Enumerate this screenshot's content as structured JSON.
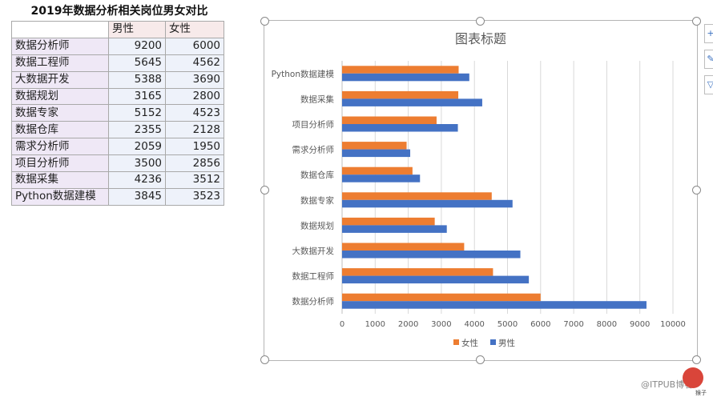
{
  "table": {
    "title": "2019年数据分析相关岗位男女对比",
    "headers": [
      "",
      "男性",
      "女性"
    ],
    "rows": [
      [
        "数据分析师",
        "9200",
        "6000"
      ],
      [
        "数据工程师",
        "5645",
        "4562"
      ],
      [
        "大数据开发",
        "5388",
        "3690"
      ],
      [
        "数据规划",
        "3165",
        "2800"
      ],
      [
        "数据专家",
        "5152",
        "4523"
      ],
      [
        "数据仓库",
        "2355",
        "2128"
      ],
      [
        "需求分析师",
        "2059",
        "1950"
      ],
      [
        "项目分析师",
        "3500",
        "2856"
      ],
      [
        "数据采集",
        "4236",
        "3512"
      ],
      [
        "Python数据建模",
        "3845",
        "3523"
      ]
    ]
  },
  "colors": {
    "male": "#4472c4",
    "female": "#ed7d31",
    "grid": "#d9d9d9",
    "text": "#595959"
  },
  "chart_data": {
    "type": "bar",
    "orientation": "horizontal",
    "title": "图表标题",
    "categories": [
      "数据分析师",
      "数据工程师",
      "大数据开发",
      "数据规划",
      "数据专家",
      "数据仓库",
      "需求分析师",
      "项目分析师",
      "数据采集",
      "Python数据建模"
    ],
    "series": [
      {
        "name": "男性",
        "values": [
          9200,
          5645,
          5388,
          3165,
          5152,
          2355,
          2059,
          3500,
          4236,
          3845
        ]
      },
      {
        "name": "女性",
        "values": [
          6000,
          4562,
          3690,
          2800,
          4523,
          2128,
          1950,
          2856,
          3512,
          3523
        ]
      }
    ],
    "xlim": [
      0,
      10000
    ],
    "xticks": [
      "0",
      "1000",
      "2000",
      "3000",
      "4000",
      "5000",
      "6000",
      "7000",
      "8000",
      "9000",
      "10000"
    ],
    "grid": true,
    "legend": "bottom",
    "legend_order": [
      "女性",
      "男性"
    ]
  },
  "watermark": {
    "text": "@ITPUB博客",
    "sub": "猴子"
  }
}
